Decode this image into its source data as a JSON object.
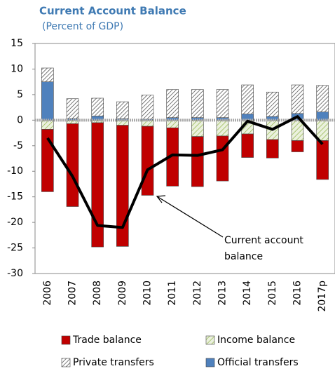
{
  "chart_data": {
    "type": "bar",
    "title": "Current Account Balance",
    "subtitle": "(Percent of GDP)",
    "categories": [
      "2006",
      "2007",
      "2008",
      "2009",
      "2010",
      "2011",
      "2012",
      "2013",
      "2014",
      "2015",
      "2016",
      "2017p"
    ],
    "series": [
      {
        "name": "Trade balance",
        "color": "#c00000",
        "values": [
          -12.2,
          -16.2,
          -24.3,
          -23.7,
          -13.5,
          -11.4,
          -9.8,
          -8.8,
          -4.6,
          -3.6,
          -2.2,
          -7.6
        ]
      },
      {
        "name": "Income balance",
        "color": "#ebf1de",
        "hatch": "#9bbb59",
        "values": [
          -1.8,
          -0.7,
          -0.5,
          -1.0,
          -1.2,
          -1.5,
          -3.2,
          -3.1,
          -2.7,
          -3.8,
          -4.0,
          -4.0
        ]
      },
      {
        "name": "Private transfers",
        "color": "#ffffff",
        "hatch": "#404040",
        "values": [
          2.7,
          3.9,
          3.5,
          3.3,
          4.7,
          5.5,
          5.5,
          5.5,
          5.7,
          4.8,
          5.6,
          5.2
        ]
      },
      {
        "name": "Official transfers",
        "color": "#4f81bd",
        "values": [
          7.5,
          0.3,
          0.8,
          0.3,
          0.2,
          0.5,
          0.5,
          0.5,
          1.2,
          0.7,
          1.3,
          1.6
        ]
      }
    ],
    "line": {
      "type": "line",
      "color": "#000000",
      "values": [
        -3.5,
        -11,
        -20.6,
        -21,
        -9.7,
        -6.8,
        -6.9,
        -5.8,
        -0.2,
        -1.8,
        0.7,
        -4.7
      ]
    },
    "annotation": [
      "Current account",
      "balance"
    ],
    "ylim": [
      -30,
      15
    ],
    "yticks": [
      -30,
      -25,
      -20,
      -15,
      -10,
      -5,
      0,
      5,
      10,
      15
    ]
  }
}
